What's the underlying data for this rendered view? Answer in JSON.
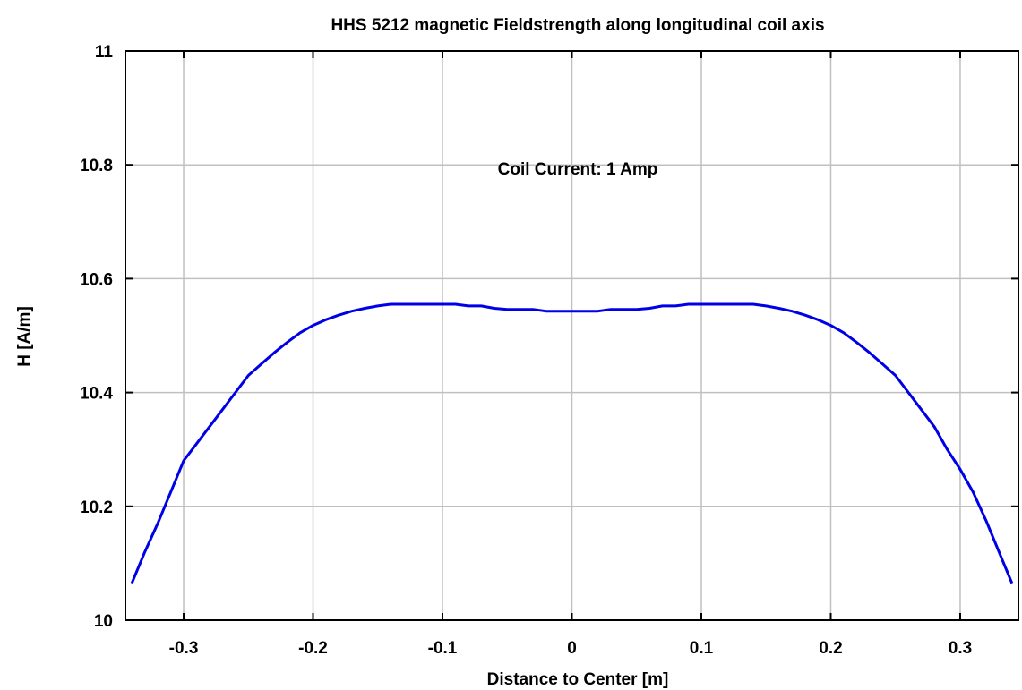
{
  "chart_data": {
    "type": "line",
    "title": "HHS 5212 magnetic Fieldstrength along longitudinal coil axis",
    "xlabel": "Distance to Center [m]",
    "ylabel": "H [A/m]",
    "xlim": [
      -0.345,
      0.345
    ],
    "ylim": [
      10,
      11
    ],
    "xticks": [
      -0.3,
      -0.2,
      -0.1,
      0,
      0.1,
      0.2,
      0.3
    ],
    "xtick_labels": [
      "-0.3",
      "-0.2",
      "-0.1",
      "0",
      "0.1",
      "0.2",
      "0.3"
    ],
    "yticks": [
      10,
      10.2,
      10.4,
      10.6,
      10.8,
      11
    ],
    "ytick_labels": [
      "10",
      "10.2",
      "10.4",
      "10.6",
      "10.8",
      "11"
    ],
    "grid": true,
    "annotation": "Coil Current: 1 Amp",
    "line_color": "#0000e6",
    "series": [
      {
        "x": [
          -0.34,
          -0.33,
          -0.32,
          -0.31,
          -0.3,
          -0.29,
          -0.28,
          -0.27,
          -0.26,
          -0.25,
          -0.24,
          -0.23,
          -0.22,
          -0.21,
          -0.2,
          -0.19,
          -0.18,
          -0.17,
          -0.16,
          -0.15,
          -0.14,
          -0.13,
          -0.12,
          -0.11,
          -0.1,
          -0.09,
          -0.08,
          -0.07,
          -0.06,
          -0.05,
          -0.04,
          -0.03,
          -0.02,
          -0.01,
          0,
          0.01,
          0.02,
          0.03,
          0.04,
          0.05,
          0.06,
          0.07,
          0.08,
          0.09,
          0.1,
          0.11,
          0.12,
          0.13,
          0.14,
          0.15,
          0.16,
          0.17,
          0.18,
          0.19,
          0.2,
          0.21,
          0.22,
          0.23,
          0.24,
          0.25,
          0.26,
          0.27,
          0.28,
          0.29,
          0.3,
          0.31,
          0.32,
          0.33,
          0.34
        ],
        "y": [
          10.065,
          10.12,
          10.17,
          10.225,
          10.28,
          10.31,
          10.34,
          10.37,
          10.4,
          10.43,
          10.45,
          10.47,
          10.488,
          10.505,
          10.518,
          10.528,
          10.536,
          10.543,
          10.548,
          10.552,
          10.555,
          10.555,
          10.555,
          10.555,
          10.555,
          10.555,
          10.552,
          10.552,
          10.548,
          10.546,
          10.546,
          10.546,
          10.543,
          10.543,
          10.543,
          10.543,
          10.543,
          10.546,
          10.546,
          10.546,
          10.548,
          10.552,
          10.552,
          10.555,
          10.555,
          10.555,
          10.555,
          10.555,
          10.555,
          10.552,
          10.548,
          10.543,
          10.536,
          10.528,
          10.518,
          10.505,
          10.488,
          10.47,
          10.45,
          10.43,
          10.4,
          10.37,
          10.34,
          10.3,
          10.265,
          10.225,
          10.175,
          10.12,
          10.065
        ]
      }
    ]
  }
}
